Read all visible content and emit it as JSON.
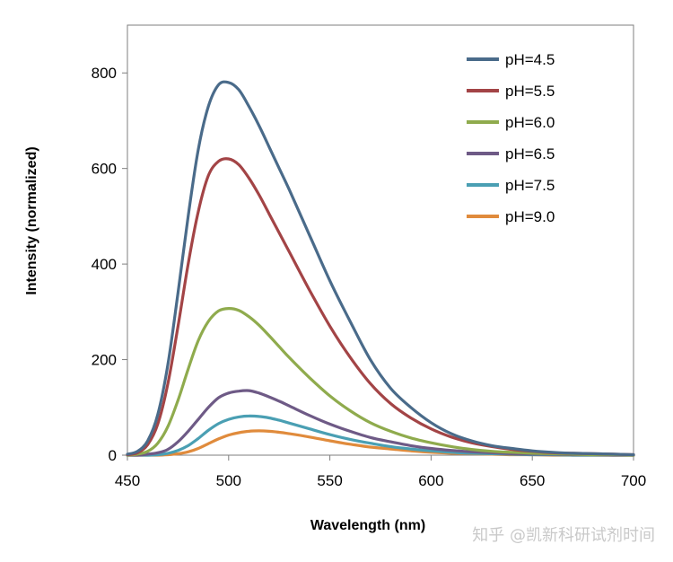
{
  "chart_data": {
    "type": "line",
    "title": "",
    "xlabel": "Wavelength (nm)",
    "ylabel": "Intensity (normalized)",
    "xlim": [
      450,
      700
    ],
    "ylim": [
      0,
      900
    ],
    "xticks": [
      450,
      500,
      550,
      600,
      650,
      700
    ],
    "yticks": [
      0,
      200,
      400,
      600,
      800
    ],
    "grid": false,
    "legend_position": "top-right",
    "x": [
      450,
      455,
      460,
      465,
      470,
      475,
      480,
      485,
      490,
      495,
      500,
      505,
      510,
      515,
      520,
      525,
      530,
      540,
      550,
      560,
      570,
      580,
      590,
      600,
      610,
      620,
      630,
      640,
      650,
      660,
      670,
      680,
      690,
      700
    ],
    "series": [
      {
        "name": "pH=4.5",
        "color": "#4a6b8a",
        "values": [
          2,
          8,
          30,
          85,
          190,
          340,
          500,
          640,
          730,
          775,
          780,
          765,
          730,
          690,
          645,
          600,
          555,
          460,
          365,
          280,
          200,
          140,
          100,
          68,
          45,
          30,
          20,
          14,
          9,
          6,
          4,
          3,
          2,
          1
        ]
      },
      {
        "name": "pH=5.5",
        "color": "#a34446",
        "values": [
          1,
          5,
          22,
          65,
          150,
          270,
          400,
          510,
          585,
          615,
          620,
          608,
          580,
          545,
          505,
          465,
          425,
          345,
          270,
          205,
          150,
          108,
          78,
          55,
          38,
          26,
          18,
          12,
          8,
          5,
          4,
          3,
          2,
          1
        ]
      },
      {
        "name": "pH=6.0",
        "color": "#8fab4d",
        "values": [
          0,
          2,
          8,
          25,
          60,
          115,
          180,
          240,
          280,
          302,
          307,
          303,
          290,
          272,
          250,
          227,
          204,
          162,
          124,
          93,
          68,
          50,
          36,
          26,
          18,
          12,
          8,
          6,
          4,
          3,
          2,
          1,
          1,
          0
        ]
      },
      {
        "name": "pH=6.5",
        "color": "#6e5a86",
        "values": [
          0,
          0,
          2,
          5,
          12,
          28,
          50,
          75,
          100,
          120,
          130,
          134,
          135,
          130,
          122,
          113,
          103,
          83,
          65,
          50,
          37,
          28,
          20,
          14,
          10,
          7,
          5,
          3,
          2,
          2,
          1,
          1,
          0,
          0
        ]
      },
      {
        "name": "pH=7.5",
        "color": "#4a9fb3",
        "values": [
          0,
          0,
          0,
          1,
          4,
          10,
          20,
          35,
          52,
          66,
          75,
          80,
          82,
          81,
          78,
          73,
          67,
          55,
          43,
          33,
          25,
          18,
          13,
          9,
          6,
          4,
          3,
          2,
          1,
          1,
          0,
          0,
          0,
          0
        ]
      },
      {
        "name": "pH=9.0",
        "color": "#e08b3c",
        "values": [
          0,
          0,
          0,
          0,
          1,
          3,
          7,
          14,
          24,
          34,
          42,
          47,
          50,
          51,
          50,
          48,
          45,
          38,
          30,
          23,
          17,
          13,
          9,
          6,
          4,
          3,
          2,
          1,
          1,
          0,
          0,
          0,
          0,
          0
        ]
      }
    ]
  },
  "watermark": "知乎 @凯新科研试剂时间"
}
